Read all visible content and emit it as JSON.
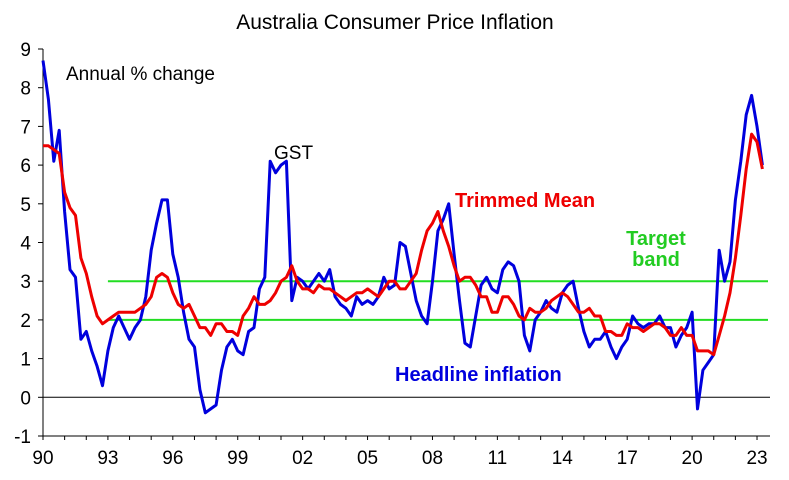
{
  "chart_data": {
    "type": "line",
    "title": "Australia Consumer Price Inflation",
    "ylabel": "",
    "xlabel": "",
    "ylim": [
      -1,
      9
    ],
    "xlim": [
      1990,
      2023.6
    ],
    "yticks": [
      "-1",
      "0",
      "1",
      "2",
      "3",
      "4",
      "5",
      "6",
      "7",
      "8",
      "9"
    ],
    "xtick_years": [
      1990,
      1993,
      1996,
      1999,
      2002,
      2005,
      2008,
      2011,
      2014,
      2017,
      2020,
      2023
    ],
    "xticks": [
      "90",
      "93",
      "96",
      "99",
      "02",
      "05",
      "08",
      "11",
      "14",
      "17",
      "20",
      "23"
    ],
    "grid": false,
    "annotations": {
      "units": "Annual % change",
      "gst": "GST",
      "trimmed_mean": "Trimmed Mean",
      "target_line1": "Target",
      "target_line2": "band",
      "headline": "Headline inflation"
    },
    "colors": {
      "headline": "#0000dd",
      "trimmed": "#ee0000",
      "target": "#22dd22"
    },
    "target_band": {
      "lower": 2,
      "upper": 3,
      "start": 1993
    },
    "series": [
      {
        "key": "headline",
        "x": [
          1990.0,
          1990.25,
          1990.5,
          1990.75,
          1991.0,
          1991.25,
          1991.5,
          1991.75,
          1992.0,
          1992.25,
          1992.5,
          1992.75,
          1993.0,
          1993.25,
          1993.5,
          1993.75,
          1994.0,
          1994.25,
          1994.5,
          1994.75,
          1995.0,
          1995.25,
          1995.5,
          1995.75,
          1996.0,
          1996.25,
          1996.5,
          1996.75,
          1997.0,
          1997.25,
          1997.5,
          1997.75,
          1998.0,
          1998.25,
          1998.5,
          1998.75,
          1999.0,
          1999.25,
          1999.5,
          1999.75,
          2000.0,
          2000.25,
          2000.5,
          2000.75,
          2001.0,
          2001.25,
          2001.5,
          2001.75,
          2002.0,
          2002.25,
          2002.5,
          2002.75,
          2003.0,
          2003.25,
          2003.5,
          2003.75,
          2004.0,
          2004.25,
          2004.5,
          2004.75,
          2005.0,
          2005.25,
          2005.5,
          2005.75,
          2006.0,
          2006.25,
          2006.5,
          2006.75,
          2007.0,
          2007.25,
          2007.5,
          2007.75,
          2008.0,
          2008.25,
          2008.5,
          2008.75,
          2009.0,
          2009.25,
          2009.5,
          2009.75,
          2010.0,
          2010.25,
          2010.5,
          2010.75,
          2011.0,
          2011.25,
          2011.5,
          2011.75,
          2012.0,
          2012.25,
          2012.5,
          2012.75,
          2013.0,
          2013.25,
          2013.5,
          2013.75,
          2014.0,
          2014.25,
          2014.5,
          2014.75,
          2015.0,
          2015.25,
          2015.5,
          2015.75,
          2016.0,
          2016.25,
          2016.5,
          2016.75,
          2017.0,
          2017.25,
          2017.5,
          2017.75,
          2018.0,
          2018.25,
          2018.5,
          2018.75,
          2019.0,
          2019.25,
          2019.5,
          2019.75,
          2020.0,
          2020.25,
          2020.5,
          2020.75,
          2021.0,
          2021.25,
          2021.5,
          2021.75,
          2022.0,
          2022.25,
          2022.5,
          2022.75,
          2023.0,
          2023.25
        ],
        "values": [
          8.7,
          7.7,
          6.1,
          6.9,
          4.8,
          3.3,
          3.1,
          1.5,
          1.7,
          1.2,
          0.8,
          0.3,
          1.2,
          1.8,
          2.1,
          1.8,
          1.5,
          1.8,
          2.0,
          2.6,
          3.8,
          4.5,
          5.1,
          5.1,
          3.7,
          3.1,
          2.2,
          1.5,
          1.3,
          0.2,
          -0.4,
          -0.3,
          -0.2,
          0.7,
          1.3,
          1.5,
          1.2,
          1.1,
          1.7,
          1.8,
          2.8,
          3.1,
          6.1,
          5.8,
          6.0,
          6.1,
          2.5,
          3.1,
          3.0,
          2.8,
          3.0,
          3.2,
          3.0,
          3.3,
          2.6,
          2.4,
          2.3,
          2.1,
          2.6,
          2.4,
          2.5,
          2.4,
          2.6,
          3.1,
          2.8,
          2.9,
          4.0,
          3.9,
          3.2,
          2.5,
          2.1,
          1.9,
          3.0,
          4.3,
          4.6,
          5.0,
          3.7,
          2.5,
          1.4,
          1.3,
          2.1,
          2.9,
          3.1,
          2.8,
          2.7,
          3.3,
          3.5,
          3.4,
          3.0,
          1.6,
          1.2,
          2.0,
          2.2,
          2.5,
          2.3,
          2.2,
          2.7,
          2.9,
          3.0,
          2.3,
          1.7,
          1.3,
          1.5,
          1.5,
          1.7,
          1.3,
          1.0,
          1.3,
          1.5,
          2.1,
          1.9,
          1.8,
          1.9,
          1.9,
          2.1,
          1.8,
          1.8,
          1.3,
          1.6,
          1.8,
          2.2,
          -0.3,
          0.7,
          0.9,
          1.1,
          3.8,
          3.0,
          3.5,
          5.1,
          6.1,
          7.3,
          7.8,
          7.0,
          6.0
        ]
      },
      {
        "key": "trimmed",
        "x": [
          1990.0,
          1990.25,
          1990.5,
          1990.75,
          1991.0,
          1991.25,
          1991.5,
          1991.75,
          1992.0,
          1992.25,
          1992.5,
          1992.75,
          1993.0,
          1993.25,
          1993.5,
          1993.75,
          1994.0,
          1994.25,
          1994.5,
          1994.75,
          1995.0,
          1995.25,
          1995.5,
          1995.75,
          1996.0,
          1996.25,
          1996.5,
          1996.75,
          1997.0,
          1997.25,
          1997.5,
          1997.75,
          1998.0,
          1998.25,
          1998.5,
          1998.75,
          1999.0,
          1999.25,
          1999.5,
          1999.75,
          2000.0,
          2000.25,
          2000.5,
          2000.75,
          2001.0,
          2001.25,
          2001.5,
          2001.75,
          2002.0,
          2002.25,
          2002.5,
          2002.75,
          2003.0,
          2003.25,
          2003.5,
          2003.75,
          2004.0,
          2004.25,
          2004.5,
          2004.75,
          2005.0,
          2005.25,
          2005.5,
          2005.75,
          2006.0,
          2006.25,
          2006.5,
          2006.75,
          2007.0,
          2007.25,
          2007.5,
          2007.75,
          2008.0,
          2008.25,
          2008.5,
          2008.75,
          2009.0,
          2009.25,
          2009.5,
          2009.75,
          2010.0,
          2010.25,
          2010.5,
          2010.75,
          2011.0,
          2011.25,
          2011.5,
          2011.75,
          2012.0,
          2012.25,
          2012.5,
          2012.75,
          2013.0,
          2013.25,
          2013.5,
          2013.75,
          2014.0,
          2014.25,
          2014.5,
          2014.75,
          2015.0,
          2015.25,
          2015.5,
          2015.75,
          2016.0,
          2016.25,
          2016.5,
          2016.75,
          2017.0,
          2017.25,
          2017.5,
          2017.75,
          2018.0,
          2018.25,
          2018.5,
          2018.75,
          2019.0,
          2019.25,
          2019.5,
          2019.75,
          2020.0,
          2020.25,
          2020.5,
          2020.75,
          2021.0,
          2021.25,
          2021.5,
          2021.75,
          2022.0,
          2022.25,
          2022.5,
          2022.75,
          2023.0,
          2023.25
        ],
        "values": [
          6.5,
          6.5,
          6.4,
          6.3,
          5.3,
          4.9,
          4.7,
          3.6,
          3.2,
          2.6,
          2.1,
          1.9,
          2.0,
          2.1,
          2.2,
          2.2,
          2.2,
          2.2,
          2.3,
          2.4,
          2.6,
          3.1,
          3.2,
          3.1,
          2.7,
          2.4,
          2.3,
          2.4,
          2.1,
          1.8,
          1.8,
          1.6,
          1.9,
          1.9,
          1.7,
          1.7,
          1.6,
          2.1,
          2.3,
          2.6,
          2.4,
          2.4,
          2.5,
          2.7,
          3.0,
          3.1,
          3.4,
          3.0,
          2.8,
          2.8,
          2.7,
          2.9,
          2.8,
          2.8,
          2.7,
          2.6,
          2.5,
          2.6,
          2.7,
          2.7,
          2.8,
          2.7,
          2.6,
          2.8,
          3.0,
          3.0,
          2.8,
          2.8,
          3.0,
          3.2,
          3.8,
          4.3,
          4.5,
          4.8,
          4.3,
          3.9,
          3.4,
          3.0,
          3.1,
          3.1,
          2.9,
          2.6,
          2.6,
          2.2,
          2.2,
          2.6,
          2.6,
          2.4,
          2.1,
          2.0,
          2.3,
          2.2,
          2.2,
          2.3,
          2.5,
          2.6,
          2.7,
          2.6,
          2.4,
          2.2,
          2.2,
          2.3,
          2.1,
          2.1,
          1.7,
          1.7,
          1.6,
          1.6,
          1.9,
          1.8,
          1.8,
          1.7,
          1.8,
          1.9,
          1.9,
          1.8,
          1.6,
          1.6,
          1.8,
          1.6,
          1.6,
          1.2,
          1.2,
          1.2,
          1.1,
          1.6,
          2.1,
          2.7,
          3.6,
          4.7,
          5.9,
          6.8,
          6.6,
          5.9
        ]
      }
    ]
  }
}
